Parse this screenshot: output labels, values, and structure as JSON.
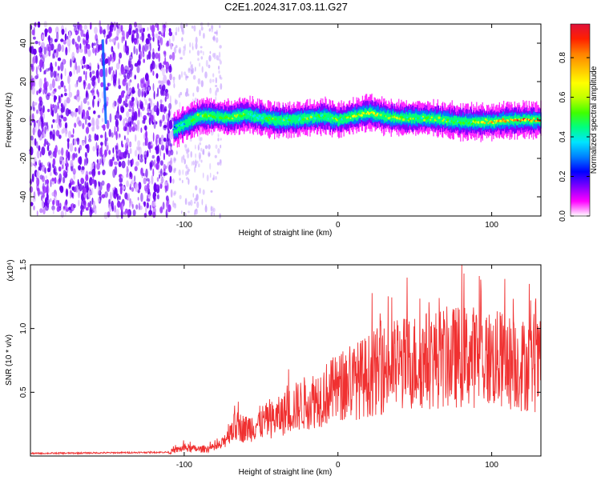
{
  "title": "C2E1.2024.317.03.11.G27",
  "colors": {
    "snr_line": "#f03030",
    "colorbar": [
      "#ffffff",
      "#ff00ff",
      "#8000ff",
      "#0000ff",
      "#0080ff",
      "#00e5ff",
      "#00ff80",
      "#40ff00",
      "#c0ff00",
      "#ffff00",
      "#ffc000",
      "#ff8000",
      "#ff2000",
      "#e0103a"
    ]
  },
  "chart_data": [
    {
      "type": "heatmap",
      "xlabel": "Height of straight line (km)",
      "ylabel": "Frequency (Hz)",
      "xlim": [
        -200,
        132
      ],
      "ylim": [
        -50,
        50
      ],
      "xticks": [
        -100,
        0,
        100
      ],
      "yticks": [
        -40,
        -20,
        0,
        20,
        40
      ],
      "colorbar": {
        "label": "Normalized spectral amplitude",
        "range": [
          0,
          0.97
        ],
        "ticks": [
          0.0,
          0.2,
          0.4,
          0.6,
          0.8
        ]
      },
      "noise_region_x": [
        -200,
        -107
      ],
      "sparse_region_x": [
        -107,
        -76
      ],
      "ridge": {
        "x": [
          -107,
          -100,
          -90,
          -80,
          -70,
          -60,
          -50,
          -40,
          -30,
          -20,
          -10,
          0,
          10,
          20,
          30,
          40,
          50,
          60,
          70,
          80,
          90,
          100,
          110,
          120,
          132
        ],
        "y": [
          -5,
          -2,
          2,
          2,
          1,
          3,
          1,
          0,
          0,
          1,
          2,
          0,
          2,
          4,
          2,
          1,
          1,
          1,
          0,
          -1,
          -1,
          -1,
          0,
          0,
          0
        ],
        "peak_amplitude": [
          0.3,
          0.45,
          0.55,
          0.5,
          0.6,
          0.5,
          0.45,
          0.55,
          0.5,
          0.55,
          0.5,
          0.55,
          0.6,
          0.7,
          0.6,
          0.6,
          0.55,
          0.6,
          0.55,
          0.5,
          0.6,
          0.75,
          0.85,
          0.9,
          0.85
        ]
      },
      "noise_streak": {
        "x": -153,
        "y_range": [
          -2,
          42
        ]
      }
    },
    {
      "type": "line",
      "xlabel": "Height of straight line (km)",
      "ylabel": "SNR (10 * v/v)",
      "scale_label": "(x10⁴)",
      "xlim": [
        -200,
        132
      ],
      "ylim": [
        0,
        1.5
      ],
      "xticks": [
        -100,
        0,
        100
      ],
      "yticks": [
        0.5,
        1.0,
        1.5
      ],
      "ytick_labels": [
        "0.5",
        "1.0",
        "1.5"
      ],
      "series": [
        {
          "x": [
            -200,
            -150,
            -110,
            -100,
            -90,
            -80,
            -75,
            -70,
            -65,
            -60,
            -50,
            -40,
            -30,
            -20,
            -10,
            0,
            10,
            20,
            30,
            40,
            50,
            60,
            70,
            80,
            90,
            100,
            110,
            120,
            132
          ],
          "y": [
            0.02,
            0.025,
            0.03,
            0.06,
            0.05,
            0.06,
            0.09,
            0.2,
            0.22,
            0.2,
            0.25,
            0.28,
            0.35,
            0.4,
            0.45,
            0.5,
            0.55,
            0.6,
            0.65,
            0.68,
            0.7,
            0.72,
            0.73,
            0.74,
            0.74,
            0.72,
            0.7,
            0.68,
            0.66
          ]
        }
      ]
    }
  ]
}
